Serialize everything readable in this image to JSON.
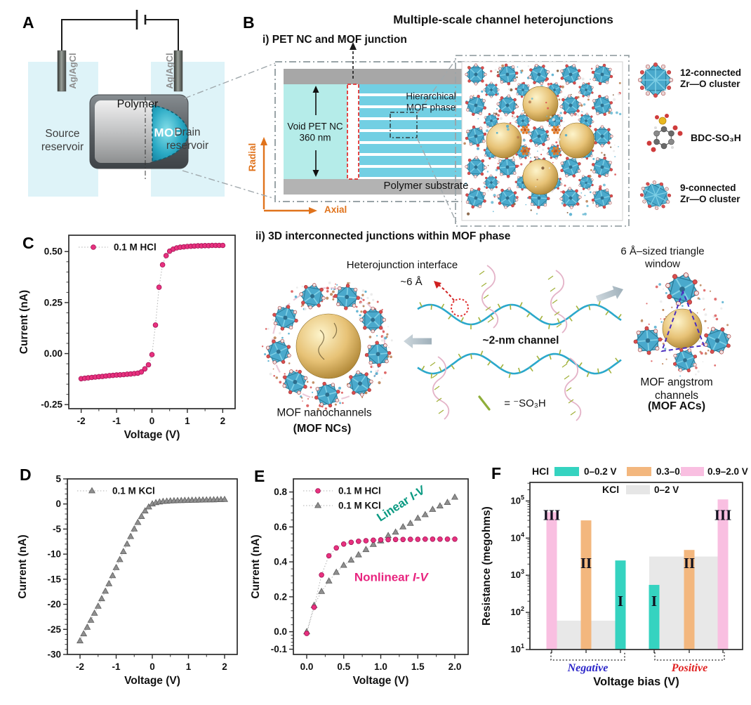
{
  "panels": {
    "a": "A",
    "b": "B",
    "c": "C",
    "d": "D",
    "e": "E",
    "f": "F"
  },
  "panel_a": {
    "polymer": "Polymer",
    "mof": "MOF",
    "source": "Source\nreservoir",
    "drain": "Drain\nreservoir",
    "electrode": "Ag/AgCl"
  },
  "panel_b": {
    "title": "Multiple-scale channel heterojunctions",
    "section_i": "i) PET NC and MOF junction",
    "hierarchical": "Hierarchical\nMOF phase",
    "void_pet": "Void PET NC\n360 nm",
    "substrate": "Polymer substrate",
    "radial": "Radial",
    "axial": "Axial",
    "cluster12": "12-connected\nZr—O cluster",
    "bdc": "BDC-SO₃H",
    "cluster9": "9-connected\nZr—O cluster",
    "section_ii": "ii) 3D interconnected junctions within MOF phase",
    "hetero_line1": "Heterojunction interface",
    "hetero_line2": "~6 Å",
    "channel": "~2-nm channel",
    "so3h": "= ⁻SO₃H",
    "triangle_window": "6 Å–sized triangle window",
    "nc_line1": "MOF nanochannels",
    "nc_line2": "(MOF NCs)",
    "ac_line1": "MOF angstrom channels",
    "ac_line2": "(MOF ACs)"
  },
  "chart_data": [
    {
      "id": "C",
      "type": "line",
      "xlabel": "Voltage (V)",
      "ylabel": "Current (nA)",
      "xlim": [
        -2.35,
        2.35
      ],
      "ylim": [
        -0.27,
        0.58
      ],
      "xticks": [
        -2,
        -1,
        0,
        1,
        2
      ],
      "xtick_labels": [
        "-2",
        "-1",
        "0",
        "1",
        "2"
      ],
      "yticks": [
        -0.25,
        0,
        0.25,
        0.5
      ],
      "ytick_labels": [
        "-0.25",
        "0.00",
        "0.25",
        "0.50"
      ],
      "series": [
        {
          "name": "0.1 M HCl",
          "marker": "circle",
          "color": "#e8317f",
          "edge": "#a31254",
          "x": [
            -2,
            -1.9,
            -1.8,
            -1.7,
            -1.6,
            -1.5,
            -1.4,
            -1.3,
            -1.2,
            -1.1,
            -1,
            -0.9,
            -0.8,
            -0.7,
            -0.6,
            -0.5,
            -0.4,
            -0.3,
            -0.2,
            -0.1,
            0,
            0.1,
            0.2,
            0.3,
            0.4,
            0.5,
            0.6,
            0.7,
            0.8,
            0.9,
            1,
            1.1,
            1.2,
            1.3,
            1.4,
            1.5,
            1.6,
            1.7,
            1.8,
            1.9,
            2
          ],
          "y": [
            -0.123,
            -0.121,
            -0.119,
            -0.117,
            -0.115,
            -0.113,
            -0.112,
            -0.11,
            -0.108,
            -0.107,
            -0.105,
            -0.104,
            -0.103,
            -0.101,
            -0.1,
            -0.098,
            -0.096,
            -0.09,
            -0.075,
            -0.055,
            -0.005,
            0.14,
            0.325,
            0.435,
            0.48,
            0.502,
            0.512,
            0.518,
            0.521,
            0.523,
            0.525,
            0.526,
            0.527,
            0.528,
            0.528,
            0.529,
            0.529,
            0.53,
            0.53,
            0.53,
            0.53
          ]
        }
      ],
      "annotations": []
    },
    {
      "id": "D",
      "type": "line",
      "xlabel": "Voltage (V)",
      "ylabel": "Current (nA)",
      "xlim": [
        -2.35,
        2.35
      ],
      "ylim": [
        -30,
        5
      ],
      "xticks": [
        -2,
        -1,
        0,
        1,
        2
      ],
      "xtick_labels": [
        "-2",
        "-1",
        "0",
        "1",
        "2"
      ],
      "yticks": [
        5,
        0,
        -5,
        -10,
        -15,
        -20,
        -25,
        -30
      ],
      "ytick_labels": [
        "5",
        "0",
        "-5",
        "-10",
        "-15",
        "-20",
        "-25",
        "-30"
      ],
      "series": [
        {
          "name": "0.1 M KCl",
          "marker": "triangle",
          "color": "#8f8f8f",
          "edge": "#5e5e5e",
          "x": [
            -2,
            -1.9,
            -1.8,
            -1.7,
            -1.6,
            -1.5,
            -1.4,
            -1.3,
            -1.2,
            -1.1,
            -1,
            -0.9,
            -0.8,
            -0.7,
            -0.6,
            -0.5,
            -0.4,
            -0.3,
            -0.2,
            -0.1,
            0,
            0.1,
            0.2,
            0.3,
            0.4,
            0.5,
            0.6,
            0.7,
            0.8,
            0.9,
            1,
            1.1,
            1.2,
            1.3,
            1.4,
            1.5,
            1.6,
            1.7,
            1.8,
            1.9,
            2
          ],
          "y": [
            -27.3,
            -25.9,
            -24.6,
            -23.2,
            -21.8,
            -20.4,
            -18.9,
            -17.4,
            -15.9,
            -14.3,
            -12.7,
            -11.1,
            -9.5,
            -8,
            -6.5,
            -5,
            -3.7,
            -2.5,
            -1.4,
            -0.6,
            0,
            0.25,
            0.4,
            0.5,
            0.55,
            0.6,
            0.63,
            0.66,
            0.68,
            0.7,
            0.72,
            0.74,
            0.75,
            0.77,
            0.78,
            0.8,
            0.82,
            0.83,
            0.85,
            0.87,
            0.88
          ]
        }
      ],
      "annotations": []
    },
    {
      "id": "E",
      "type": "line",
      "xlabel": "Voltage (V)",
      "ylabel": "Current (nA)",
      "xlim": [
        -0.18,
        2.18
      ],
      "ylim": [
        -0.13,
        0.875
      ],
      "xticks": [
        0,
        0.5,
        1,
        1.5,
        2
      ],
      "xtick_labels": [
        "0.0",
        "0.5",
        "1.0",
        "1.5",
        "2.0"
      ],
      "yticks": [
        -0.1,
        0,
        0.2,
        0.4,
        0.6,
        0.8
      ],
      "ytick_labels": [
        "-0.1",
        "0.0",
        "0.2",
        "0.4",
        "0.6",
        "0.8"
      ],
      "series": [
        {
          "name": "0.1 M KCl",
          "marker": "triangle",
          "color": "#8f8f8f",
          "edge": "#5e5e5e",
          "x": [
            0,
            0.1,
            0.2,
            0.3,
            0.4,
            0.5,
            0.6,
            0.7,
            0.8,
            0.9,
            1,
            1.1,
            1.2,
            1.3,
            1.4,
            1.5,
            1.6,
            1.7,
            1.8,
            1.9,
            2
          ],
          "y": [
            0,
            0.15,
            0.23,
            0.29,
            0.34,
            0.38,
            0.41,
            0.44,
            0.47,
            0.5,
            0.52,
            0.55,
            0.57,
            0.6,
            0.62,
            0.65,
            0.67,
            0.7,
            0.72,
            0.74,
            0.77
          ]
        },
        {
          "name": "0.1 M HCl",
          "marker": "circle",
          "color": "#e8317f",
          "edge": "#a31254",
          "x": [
            0,
            0.1,
            0.2,
            0.3,
            0.4,
            0.5,
            0.6,
            0.7,
            0.8,
            0.9,
            1,
            1.1,
            1.2,
            1.3,
            1.4,
            1.5,
            1.6,
            1.7,
            1.8,
            1.9,
            2
          ],
          "y": [
            -0.01,
            0.14,
            0.325,
            0.435,
            0.48,
            0.502,
            0.512,
            0.518,
            0.521,
            0.524,
            0.526,
            0.527,
            0.528,
            0.528,
            0.529,
            0.529,
            0.53,
            0.53,
            0.53,
            0.53,
            0.53
          ]
        }
      ],
      "annotations": [
        {
          "text": "Linear I-V",
          "x": 1.3,
          "y": 0.714,
          "angle": -33,
          "color": "#0b9a82"
        },
        {
          "text": "Nonlinear I-V",
          "x": 1.14,
          "y": 0.29,
          "angle": 0,
          "color": "#e8247f"
        }
      ]
    },
    {
      "id": "F",
      "type": "bar",
      "scale": "log",
      "xlabel": "Voltage bias (V)",
      "ylabel": "Resistance (megohms)",
      "ylim": [
        10,
        316000
      ],
      "ytick_exponents": [
        1,
        2,
        3,
        4,
        5
      ],
      "legend": {
        "row1_label": "HCl",
        "row2_label": "KCl",
        "items": [
          {
            "label": "0–0.2 V",
            "color": "#35d3c0"
          },
          {
            "label": "0.3–0.8 V",
            "color": "#f3b77e"
          },
          {
            "label": "0.9–2.0 V",
            "color": "#f9bfe1"
          }
        ],
        "kcl_item": {
          "label": "0–2 V",
          "color": "#e6e6e6"
        }
      },
      "groups": [
        {
          "label": "Negative",
          "label_color": "#2a24c8",
          "kcl_value": 60,
          "bars": [
            {
              "range": "0.9–2.0 V",
              "color": "#f9bfe1",
              "value": 50000,
              "numeral": "III"
            },
            {
              "range": "0.3–0.8 V",
              "color": "#f3b77e",
              "value": 30000,
              "numeral": "II"
            },
            {
              "range": "0–0.2 V",
              "color": "#35d3c0",
              "value": 2500,
              "numeral": "I"
            }
          ]
        },
        {
          "label": "Positive",
          "label_color": "#e02020",
          "kcl_value": 3200,
          "bars": [
            {
              "range": "0–0.2 V",
              "color": "#35d3c0",
              "value": 550,
              "numeral": "I"
            },
            {
              "range": "0.3–0.8 V",
              "color": "#f3b77e",
              "value": 4800,
              "numeral": "II"
            },
            {
              "range": "0.9–2.0 V",
              "color": "#f9bfe1",
              "value": 110000,
              "numeral": "III"
            }
          ]
        }
      ]
    }
  ],
  "colors": {
    "accent_teal": "#35d3c0",
    "accent_orange": "#f3b77e",
    "accent_pink": "#f9bfe1",
    "hcl_marker": "#e8317f",
    "kcl_marker": "#8f8f8f",
    "stripe_blue": "#72cfe3",
    "void_cyan": "#b5ece9",
    "axis_orange": "#e0731c",
    "junction_red": "#e23333"
  }
}
